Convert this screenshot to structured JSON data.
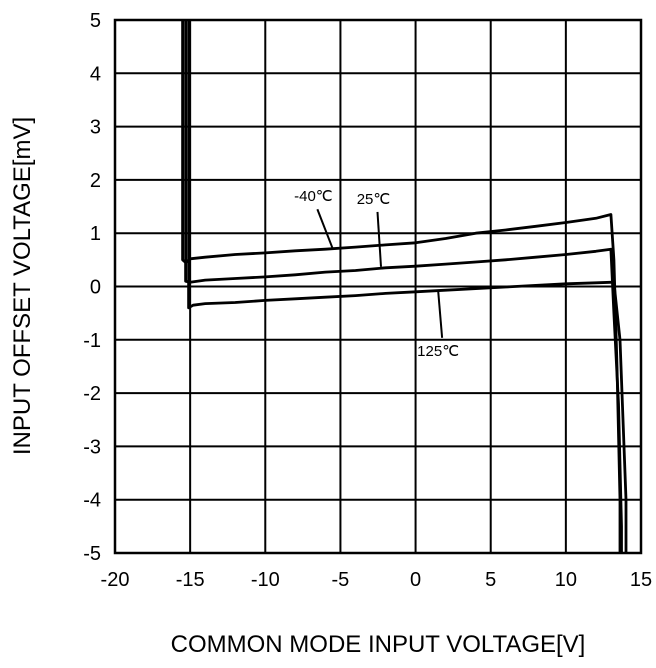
{
  "chart_data": {
    "type": "line",
    "title": "",
    "xlabel": "COMMON MODE INPUT VOLTAGE[V]",
    "ylabel": "INPUT OFFSET VOLTAGE[mV]",
    "xlim": [
      -20,
      15
    ],
    "ylim": [
      -5,
      5
    ],
    "xticks": [
      -20,
      -15,
      -10,
      -5,
      0,
      5,
      10,
      15
    ],
    "yticks": [
      -5,
      -4,
      -3,
      -2,
      -1,
      0,
      1,
      2,
      3,
      4,
      5
    ],
    "xtick_labels": [
      "-20",
      "-15",
      "-10",
      "-5",
      "0",
      "5",
      "10",
      "15"
    ],
    "ytick_labels": [
      "-5",
      "-4",
      "-3",
      "-2",
      "-1",
      "0",
      "1",
      "2",
      "3",
      "4",
      "5"
    ],
    "grid": true,
    "legend": "none",
    "series": [
      {
        "name": "-40℃",
        "x": [
          -15.5,
          -15.5,
          -15.3,
          -15.0,
          -14.0,
          -12.0,
          -10.0,
          -8.0,
          -6.0,
          -4.0,
          -2.0,
          0.0,
          2.0,
          4.0,
          6.0,
          8.0,
          10.0,
          12.0,
          13.0,
          13.2,
          13.4,
          13.6,
          13.6
        ],
        "y": [
          5.0,
          0.5,
          0.45,
          0.52,
          0.55,
          0.6,
          0.63,
          0.67,
          0.7,
          0.74,
          0.78,
          0.82,
          0.9,
          1.0,
          1.06,
          1.13,
          1.2,
          1.28,
          1.35,
          0.5,
          -1.5,
          -4.0,
          -5.0
        ]
      },
      {
        "name": "25℃",
        "x": [
          -15.3,
          -15.3,
          -15.0,
          -14.0,
          -12.0,
          -10.0,
          -8.0,
          -6.0,
          -4.0,
          -2.0,
          0.0,
          2.0,
          4.0,
          6.0,
          8.0,
          10.0,
          12.0,
          13.0,
          13.2,
          13.5,
          13.7,
          13.7
        ],
        "y": [
          5.0,
          0.1,
          0.08,
          0.12,
          0.15,
          0.18,
          0.22,
          0.27,
          0.3,
          0.35,
          0.38,
          0.42,
          0.46,
          0.5,
          0.55,
          0.6,
          0.66,
          0.7,
          -0.5,
          -2.2,
          -4.5,
          -5.0
        ]
      },
      {
        "name": "125℃",
        "x": [
          -15.1,
          -15.1,
          -14.8,
          -14.0,
          -12.0,
          -10.0,
          -8.0,
          -6.0,
          -4.0,
          -2.0,
          0.0,
          2.0,
          4.0,
          6.0,
          8.0,
          10.0,
          12.0,
          13.2,
          13.6,
          14.0,
          14.0
        ],
        "y": [
          5.0,
          -0.4,
          -0.35,
          -0.32,
          -0.3,
          -0.26,
          -0.23,
          -0.2,
          -0.17,
          -0.13,
          -0.1,
          -0.07,
          -0.04,
          -0.01,
          0.02,
          0.05,
          0.07,
          0.08,
          -1.0,
          -4.0,
          -5.0
        ]
      }
    ],
    "annotations": [
      {
        "text": "-40℃",
        "x": -6.8,
        "y": 1.6,
        "target_x": -5.5,
        "target_y": 0.7
      },
      {
        "text": "25℃",
        "x": -2.8,
        "y": 1.55,
        "target_x": -2.3,
        "target_y": 0.37
      },
      {
        "text": "125℃",
        "x": 1.5,
        "y": -1.3,
        "target_x": 1.5,
        "target_y": -0.07
      }
    ]
  }
}
